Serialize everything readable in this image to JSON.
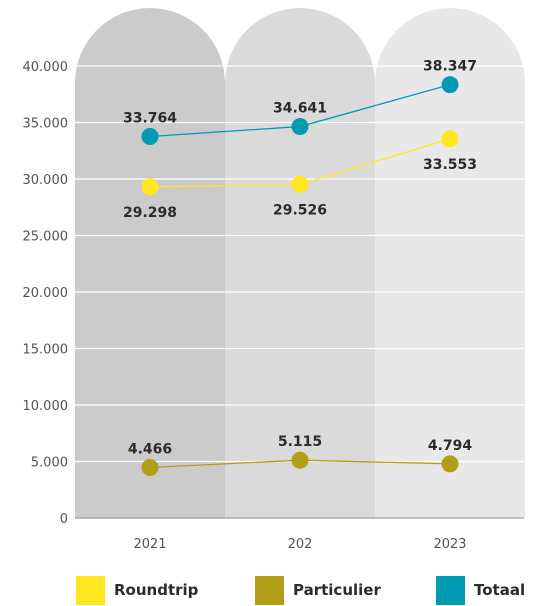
{
  "chart_data": {
    "type": "line",
    "categories": [
      "2021",
      "202",
      "2023"
    ],
    "y_ticks": [
      "0",
      "5.000",
      "10.000",
      "15.000",
      "20.000",
      "25.000",
      "30.000",
      "35.000",
      "40.000"
    ],
    "y_tick_values": [
      0,
      5000,
      10000,
      15000,
      20000,
      25000,
      30000,
      35000,
      40000
    ],
    "ylim": [
      0,
      40000
    ],
    "grid": true,
    "legend_position": "bottom",
    "column_colors": [
      "#cbcbcb",
      "#dadada",
      "#e8e8e8"
    ],
    "series": [
      {
        "name": "Totaal",
        "color": "#009bb3",
        "values": [
          33764,
          34641,
          38347
        ],
        "labels": [
          "33.764",
          "34.641",
          "38.347"
        ],
        "label_pos": [
          "above",
          "above",
          "above"
        ]
      },
      {
        "name": "Roundtrip",
        "color": "#ffe81f",
        "values": [
          29298,
          29526,
          33553
        ],
        "labels": [
          "29.298",
          "29.526",
          "33.553"
        ],
        "label_pos": [
          "below",
          "below",
          "below"
        ]
      },
      {
        "name": "Particulier",
        "color": "#b29f19",
        "values": [
          4466,
          5115,
          4794
        ],
        "labels": [
          "4.466",
          "5.115",
          "4.794"
        ],
        "label_pos": [
          "above",
          "above",
          "above"
        ]
      }
    ]
  },
  "legend": [
    {
      "label": "Roundtrip",
      "color": "#ffe81f"
    },
    {
      "label": "Particulier",
      "color": "#b29f19"
    },
    {
      "label": "Totaal",
      "color": "#009bb3"
    }
  ]
}
